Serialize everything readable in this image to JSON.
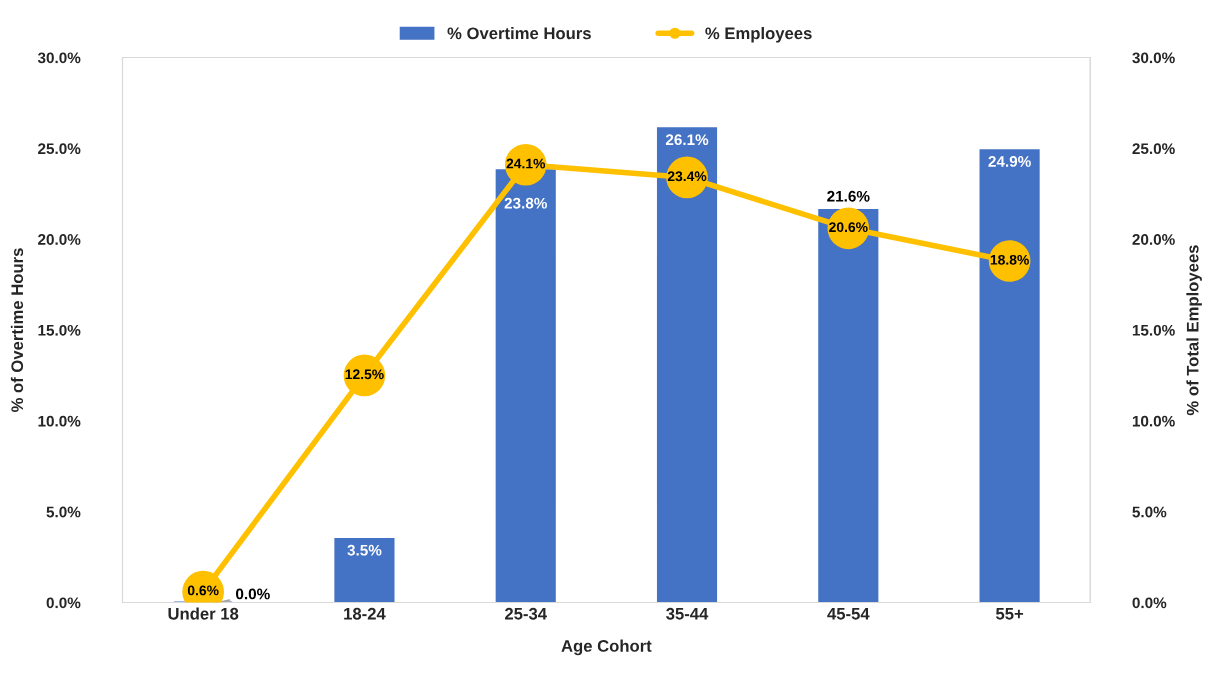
{
  "chart_data": {
    "type": "bar",
    "xlabel": "Age Cohort",
    "ylabel": "% of Overtime Hours",
    "y2label": "% of Total Employees",
    "categories": [
      "Under 18",
      "18-24",
      "25-34",
      "35-44",
      "45-54",
      "55+"
    ],
    "series": [
      {
        "name": "% Overtime Hours",
        "color": "#4472c4",
        "values": [
          0.0,
          3.5,
          23.8,
          26.1,
          21.6,
          24.9
        ],
        "value_labels": [
          "0.0%",
          "3.5%",
          "23.8%",
          "26.1%",
          "21.6%",
          "24.9%"
        ]
      },
      {
        "name": "% Employees",
        "type": "line",
        "axis": "y2",
        "color": "#ffc000",
        "marker": "circle",
        "values": [
          0.6,
          12.5,
          24.1,
          23.4,
          20.6,
          18.8
        ],
        "value_labels": [
          "0.6%",
          "12.5%",
          "24.1%",
          "23.4%",
          "20.6%",
          "18.8%"
        ]
      }
    ],
    "ylim": [
      0,
      30
    ],
    "yticks": [
      {
        "value": 0,
        "label": "0.0%"
      },
      {
        "value": 5,
        "label": "5.0%"
      },
      {
        "value": 10,
        "label": "10.0%"
      },
      {
        "value": 15,
        "label": "15.0%"
      },
      {
        "value": 20,
        "label": "20.0%"
      },
      {
        "value": 25,
        "label": "25.0%"
      },
      {
        "value": 30,
        "label": "30.0%"
      }
    ],
    "y2lim": [
      0,
      30
    ],
    "y2ticks": [
      {
        "value": 0,
        "label": "0.0%"
      },
      {
        "value": 5,
        "label": "5.0%"
      },
      {
        "value": 10,
        "label": "10.0%"
      },
      {
        "value": 15,
        "label": "15.0%"
      },
      {
        "value": 20,
        "label": "20.0%"
      },
      {
        "value": 25,
        "label": "25.0%"
      },
      {
        "value": 30,
        "label": "30.0%"
      }
    ],
    "grid": false,
    "legend": "top"
  }
}
